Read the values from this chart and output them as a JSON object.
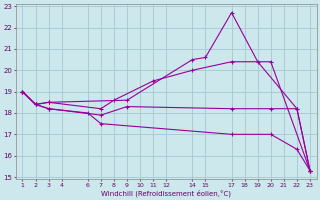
{
  "xlabel": "Windchill (Refroidissement éolien,°C)",
  "background_color": "#cce8ec",
  "grid_color": "#aaccd4",
  "line_color": "#990099",
  "x_ticks": [
    1,
    2,
    3,
    4,
    6,
    7,
    8,
    9,
    10,
    11,
    12,
    14,
    15,
    17,
    18,
    19,
    20,
    21,
    22,
    23
  ],
  "ylim": [
    15,
    23
  ],
  "xlim": [
    0.5,
    23.5
  ],
  "yticks": [
    15,
    16,
    17,
    18,
    19,
    20,
    21,
    22,
    23
  ],
  "series": [
    {
      "x": [
        1,
        2,
        3,
        9,
        14,
        15,
        17,
        19,
        22,
        23
      ],
      "y": [
        19.0,
        18.4,
        18.5,
        18.6,
        20.5,
        20.6,
        22.7,
        20.4,
        18.2,
        15.3
      ]
    },
    {
      "x": [
        1,
        2,
        3,
        7,
        8,
        11,
        14,
        17,
        20,
        23
      ],
      "y": [
        19.0,
        18.4,
        18.5,
        18.2,
        18.6,
        19.5,
        20.0,
        20.4,
        20.4,
        15.3
      ]
    },
    {
      "x": [
        1,
        2,
        3,
        7,
        9,
        17,
        20,
        22,
        23
      ],
      "y": [
        19.0,
        18.4,
        18.2,
        17.9,
        18.3,
        18.2,
        18.2,
        18.2,
        15.3
      ]
    },
    {
      "x": [
        1,
        2,
        3,
        6,
        7,
        17,
        20,
        22,
        23
      ],
      "y": [
        19.0,
        18.4,
        18.2,
        18.0,
        17.5,
        17.0,
        17.0,
        16.3,
        15.3
      ]
    }
  ]
}
